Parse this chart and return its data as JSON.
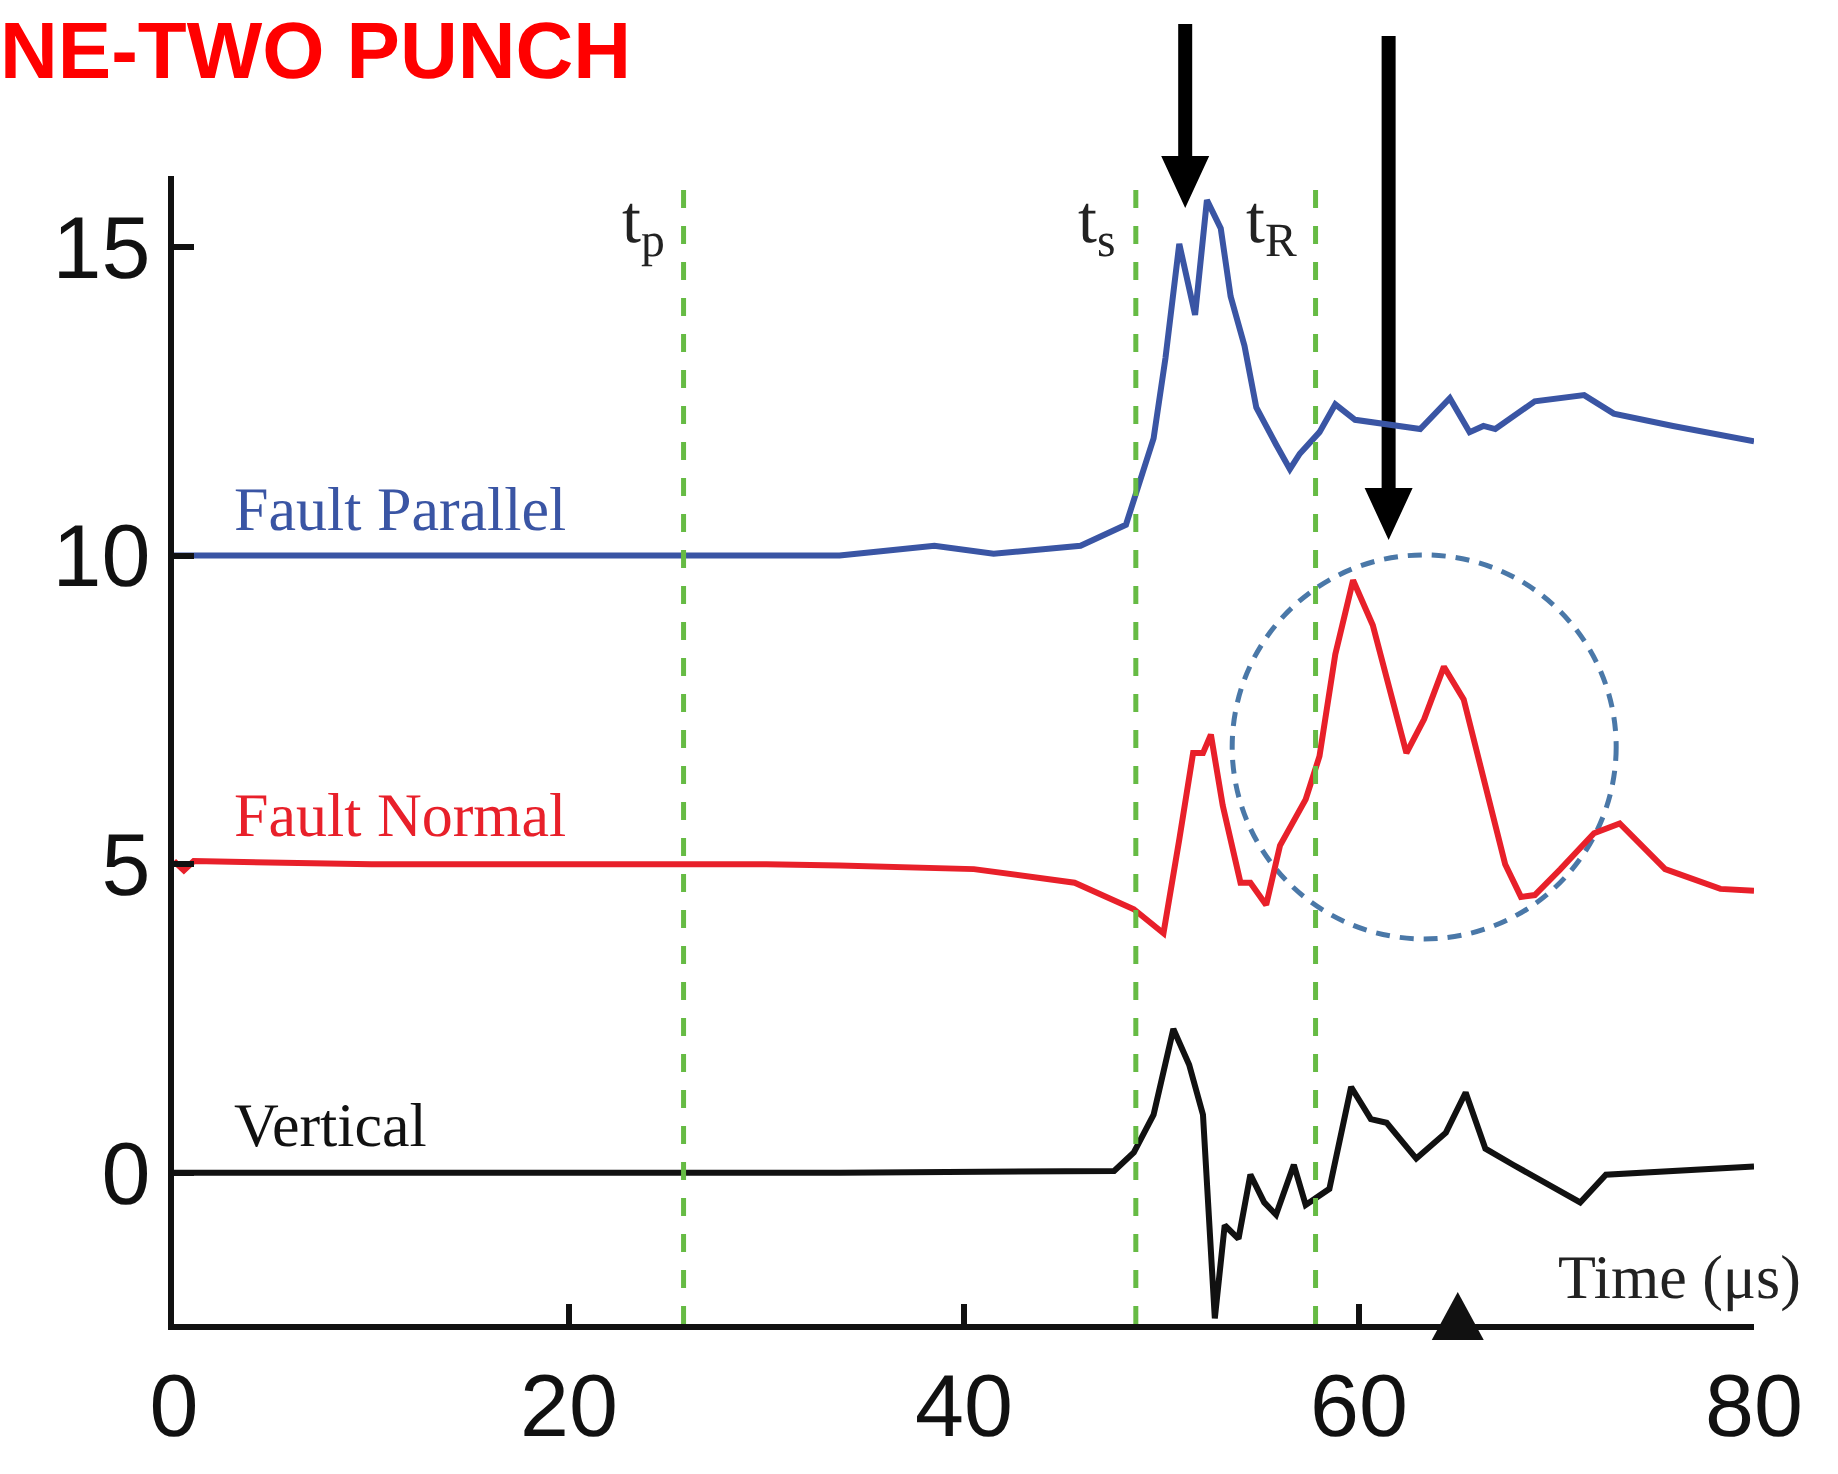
{
  "chart_data": {
    "type": "line",
    "title": "NE-TWO PUNCH",
    "xlabel": "Time (μs)",
    "xlim": [
      0,
      80
    ],
    "xticks": [
      0,
      20,
      40,
      60,
      80
    ],
    "ylim": [
      -2.45,
      16.15
    ],
    "yticks": [
      0,
      5,
      10,
      15
    ],
    "grid": false,
    "legend": false,
    "series": [
      {
        "name": "Fault Parallel",
        "color": "#3a55a4",
        "x": [
          0,
          10,
          20,
          30,
          33.7,
          38.5,
          41.5,
          45.9,
          48.2,
          49.6,
          50.2,
          50.9,
          51.7,
          52.3,
          53.0,
          53.5,
          54.2,
          54.8,
          55.8,
          56.5,
          57.0,
          58.0,
          58.8,
          59.8,
          63.1,
          64.6,
          65.6,
          66.3,
          66.9,
          68.9,
          71.4,
          72.9,
          75.9,
          80
        ],
        "values": [
          10.0,
          10.0,
          10.0,
          10.0,
          10.0,
          10.16,
          10.03,
          10.16,
          10.5,
          11.9,
          13.2,
          15.05,
          13.9,
          15.76,
          15.3,
          14.2,
          13.4,
          12.4,
          11.8,
          11.4,
          11.65,
          12.0,
          12.45,
          12.2,
          12.05,
          12.55,
          12.0,
          12.1,
          12.05,
          12.5,
          12.6,
          12.3,
          12.1,
          11.85
        ]
      },
      {
        "name": "Fault Normal",
        "color": "#e8202a",
        "x": [
          0,
          0.5,
          1,
          10,
          20,
          30,
          33.7,
          40.5,
          45.6,
          48.6,
          50.1,
          50.9,
          51.6,
          52.1,
          52.5,
          53.1,
          54.0,
          54.5,
          55.3,
          56.0,
          57.3,
          58.0,
          58.8,
          59.7,
          60.7,
          62.4,
          63.3,
          64.3,
          65.3,
          67.4,
          68.2,
          68.9,
          70.2,
          71.9,
          73.2,
          75.5,
          78.3,
          80
        ],
        "values": [
          5.05,
          4.9,
          5.05,
          5.0,
          5.0,
          5.0,
          4.98,
          4.92,
          4.7,
          4.27,
          3.88,
          5.4,
          6.8,
          6.8,
          7.1,
          5.95,
          4.7,
          4.7,
          4.34,
          5.3,
          6.05,
          6.75,
          8.4,
          9.6,
          8.87,
          6.8,
          7.35,
          8.2,
          7.67,
          5.0,
          4.47,
          4.5,
          4.92,
          5.5,
          5.66,
          4.92,
          4.6,
          4.57
        ]
      },
      {
        "name": "Vertical",
        "color": "#111111",
        "x": [
          0,
          20,
          33.7,
          47.6,
          48.6,
          49.6,
          50.6,
          51.4,
          52.1,
          52.7,
          53.2,
          53.9,
          54.5,
          55.2,
          55.8,
          56.7,
          57.3,
          58.5,
          59.6,
          60.6,
          61.4,
          62.9,
          64.4,
          65.4,
          66.4,
          67.8,
          71.2,
          72.5,
          80
        ],
        "values": [
          0,
          0,
          0,
          0.03,
          0.33,
          0.94,
          2.33,
          1.75,
          0.94,
          -2.36,
          -0.85,
          -1.07,
          -0.03,
          -0.48,
          -0.68,
          0.13,
          -0.52,
          -0.26,
          1.39,
          0.87,
          0.81,
          0.23,
          0.65,
          1.3,
          0.39,
          0.13,
          -0.48,
          -0.03,
          0.1
        ]
      }
    ],
    "ref_lines": [
      {
        "axis": "x",
        "value": 25.8,
        "label": "t$_{p}$",
        "color": "#66bb44",
        "line_style": "dashed"
      },
      {
        "axis": "x",
        "value": 48.7,
        "label": "t$_{s}$",
        "color": "#66bb44",
        "line_style": "dashed"
      },
      {
        "axis": "x",
        "value": 57.8,
        "label": "t$_{R}$",
        "color": "#66bb44",
        "line_style": "dashed"
      }
    ]
  }
}
